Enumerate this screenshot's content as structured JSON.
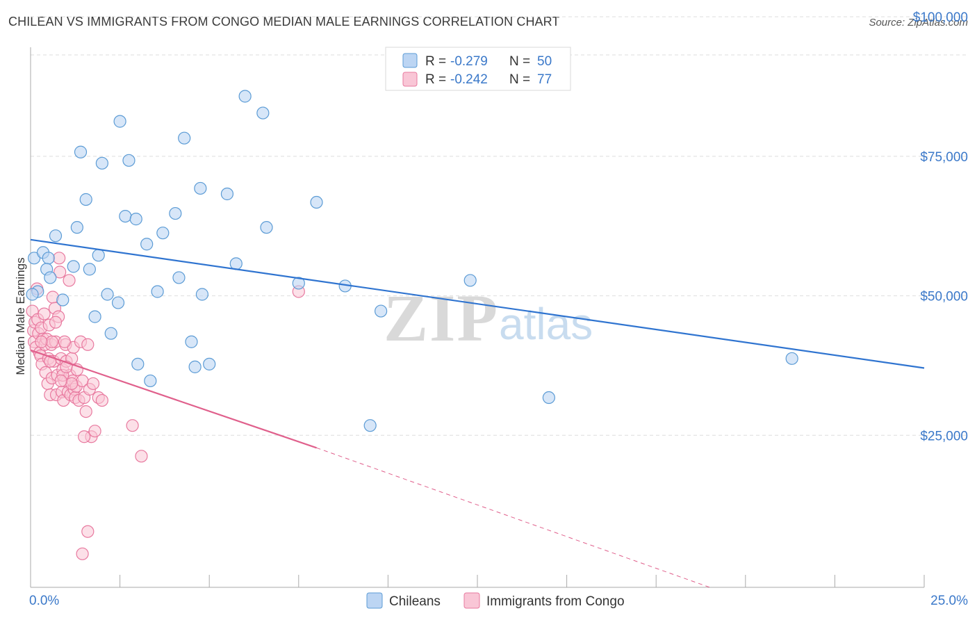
{
  "title": "CHILEAN VS IMMIGRANTS FROM CONGO MEDIAN MALE EARNINGS CORRELATION CHART",
  "source": "Source: ZipAtlas.com",
  "watermark": {
    "zip": "ZIP",
    "atlas": "atlas"
  },
  "colors": {
    "blue": "#5b9bd5",
    "blue_fill": "#bcd5f3",
    "blue_line": "#2f74d0",
    "pink": "#e8799f",
    "pink_fill": "#f9c6d6",
    "pink_line": "#e0608c",
    "axis_label": "#3a78c9",
    "grid": "#dddddd"
  },
  "legend": {
    "rows": [
      {
        "r_label": "R = ",
        "r_value": "-0.279",
        "n_label": "N = ",
        "n_value": "50"
      },
      {
        "r_label": "R = ",
        "r_value": "-0.242",
        "n_label": "N = ",
        "n_value": "77"
      }
    ]
  },
  "bottom_legend": {
    "series1": "Chileans",
    "series2": "Immigrants from Congo"
  },
  "chart_data": {
    "type": "scatter",
    "title": "CHILEAN VS IMMIGRANTS FROM CONGO MEDIAN MALE EARNINGS CORRELATION CHART",
    "xlabel": "",
    "ylabel": "Median Male Earnings",
    "xlim": [
      0,
      25
    ],
    "ylim": [
      0,
      105000
    ],
    "x_tick_labels": [
      "0.0%",
      "25.0%"
    ],
    "y_ticks": [
      25000,
      50000,
      75000,
      100000
    ],
    "y_tick_labels": [
      "$25,000",
      "$50,000",
      "$75,000",
      "$100,000"
    ],
    "grid": "horizontal dashed",
    "legend_position": "top-center",
    "series": [
      {
        "name": "Chileans",
        "color": "#5b9bd5",
        "trend": {
          "x0": 0,
          "y0": 62300,
          "x1": 25,
          "y1": 39300
        },
        "points": [
          [
            0.1,
            59000
          ],
          [
            0.2,
            53000
          ],
          [
            0.35,
            60000
          ],
          [
            0.5,
            59000
          ],
          [
            0.45,
            57000
          ],
          [
            0.55,
            55500
          ],
          [
            0.7,
            63000
          ],
          [
            0.9,
            51500
          ],
          [
            1.2,
            57500
          ],
          [
            1.3,
            64500
          ],
          [
            1.4,
            78000
          ],
          [
            1.55,
            69500
          ],
          [
            1.65,
            57000
          ],
          [
            1.8,
            48500
          ],
          [
            1.9,
            59500
          ],
          [
            2.0,
            76000
          ],
          [
            2.15,
            52500
          ],
          [
            2.25,
            45500
          ],
          [
            2.45,
            51000
          ],
          [
            2.5,
            83500
          ],
          [
            2.65,
            66500
          ],
          [
            2.75,
            76500
          ],
          [
            2.95,
            66000
          ],
          [
            3.0,
            40000
          ],
          [
            3.25,
            61500
          ],
          [
            3.35,
            37000
          ],
          [
            3.55,
            53000
          ],
          [
            3.7,
            63500
          ],
          [
            4.05,
            67000
          ],
          [
            4.15,
            55500
          ],
          [
            4.3,
            80500
          ],
          [
            4.5,
            44000
          ],
          [
            4.6,
            39500
          ],
          [
            4.75,
            71500
          ],
          [
            4.8,
            52500
          ],
          [
            5.0,
            40000
          ],
          [
            5.5,
            70500
          ],
          [
            5.75,
            58000
          ],
          [
            6.0,
            88000
          ],
          [
            6.5,
            85000
          ],
          [
            6.6,
            64500
          ],
          [
            7.5,
            54500
          ],
          [
            8.0,
            69000
          ],
          [
            8.8,
            54000
          ],
          [
            9.5,
            29000
          ],
          [
            9.8,
            49500
          ],
          [
            12.3,
            55000
          ],
          [
            14.5,
            34000
          ],
          [
            21.3,
            41000
          ],
          [
            0.05,
            52500
          ]
        ]
      },
      {
        "name": "Immigrants from Congo",
        "color": "#e8799f",
        "trend": {
          "x0": 0,
          "y0": 42500,
          "x1": 8,
          "y1": 25000,
          "dash_x1": 19,
          "dash_y1": 0
        },
        "points": [
          [
            0.05,
            49500
          ],
          [
            0.08,
            46000
          ],
          [
            0.1,
            44000
          ],
          [
            0.12,
            47500
          ],
          [
            0.15,
            43000
          ],
          [
            0.18,
            53500
          ],
          [
            0.2,
            48000
          ],
          [
            0.22,
            45500
          ],
          [
            0.25,
            42000
          ],
          [
            0.28,
            41500
          ],
          [
            0.3,
            46500
          ],
          [
            0.32,
            40000
          ],
          [
            0.35,
            44500
          ],
          [
            0.38,
            49000
          ],
          [
            0.4,
            43500
          ],
          [
            0.42,
            38500
          ],
          [
            0.45,
            44500
          ],
          [
            0.48,
            36500
          ],
          [
            0.5,
            41000
          ],
          [
            0.52,
            47000
          ],
          [
            0.55,
            34500
          ],
          [
            0.58,
            43500
          ],
          [
            0.6,
            37500
          ],
          [
            0.62,
            52000
          ],
          [
            0.65,
            40500
          ],
          [
            0.68,
            50000
          ],
          [
            0.7,
            44000
          ],
          [
            0.72,
            34500
          ],
          [
            0.75,
            38000
          ],
          [
            0.78,
            48500
          ],
          [
            0.8,
            59000
          ],
          [
            0.82,
            56500
          ],
          [
            0.85,
            41000
          ],
          [
            0.88,
            35000
          ],
          [
            0.9,
            39000
          ],
          [
            0.92,
            33500
          ],
          [
            0.95,
            37000
          ],
          [
            0.98,
            43500
          ],
          [
            1.0,
            40500
          ],
          [
            1.05,
            35000
          ],
          [
            1.08,
            55000
          ],
          [
            1.1,
            38000
          ],
          [
            1.12,
            34500
          ],
          [
            1.15,
            41000
          ],
          [
            1.18,
            37000
          ],
          [
            1.2,
            43000
          ],
          [
            1.22,
            35500
          ],
          [
            1.25,
            34000
          ],
          [
            1.28,
            36000
          ],
          [
            1.3,
            39000
          ],
          [
            1.35,
            33500
          ],
          [
            1.4,
            44000
          ],
          [
            1.45,
            37000
          ],
          [
            1.5,
            34000
          ],
          [
            1.55,
            31500
          ],
          [
            1.6,
            43500
          ],
          [
            1.65,
            35500
          ],
          [
            1.7,
            27000
          ],
          [
            1.75,
            36500
          ],
          [
            1.8,
            28000
          ],
          [
            1.9,
            34000
          ],
          [
            2.0,
            33500
          ],
          [
            1.5,
            27000
          ],
          [
            2.85,
            29000
          ],
          [
            3.1,
            23500
          ],
          [
            1.6,
            10000
          ],
          [
            1.45,
            6000
          ],
          [
            7.5,
            53000
          ],
          [
            0.6,
            44000
          ],
          [
            0.95,
            44000
          ],
          [
            0.7,
            47500
          ],
          [
            0.9,
            38000
          ],
          [
            1.0,
            39500
          ],
          [
            1.15,
            36500
          ],
          [
            0.3,
            44000
          ],
          [
            0.55,
            40500
          ],
          [
            0.85,
            37000
          ]
        ]
      }
    ]
  }
}
